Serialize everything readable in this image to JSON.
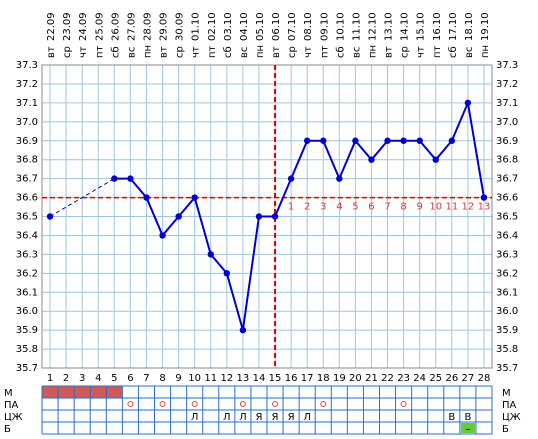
{
  "chart_data": {
    "type": "line",
    "x": [
      1,
      2,
      3,
      4,
      5,
      6,
      7,
      8,
      9,
      10,
      11,
      12,
      13,
      14,
      15,
      16,
      17,
      18,
      19,
      20,
      21,
      22,
      23,
      24,
      25,
      26,
      27,
      28
    ],
    "weekdays": [
      "вт",
      "ср",
      "чт",
      "пт",
      "сб",
      "вс",
      "пн",
      "вт",
      "ср",
      "чт",
      "пт",
      "сб",
      "вс",
      "пн",
      "вт",
      "ср",
      "чт",
      "пт",
      "сб",
      "вс",
      "пн",
      "вт",
      "ср",
      "чт",
      "пт",
      "сб",
      "вс",
      "пн"
    ],
    "dates": [
      "22.09",
      "23.09",
      "24.09",
      "25.09",
      "26.09",
      "27.09",
      "28.09",
      "29.09",
      "30.09",
      "01.10",
      "02.10",
      "03.10",
      "04.10",
      "05.10",
      "06.10",
      "07.10",
      "08.10",
      "09.10",
      "10.10",
      "11.10",
      "12.10",
      "13.10",
      "14.10",
      "15.10",
      "16.10",
      "17.10",
      "18.10",
      "19.10"
    ],
    "series": [
      {
        "color": "#0000cc",
        "values": [
          36.5,
          null,
          null,
          null,
          36.7,
          36.7,
          36.6,
          36.4,
          36.5,
          36.6,
          36.3,
          36.2,
          35.9,
          36.5,
          36.5,
          36.7,
          36.9,
          36.9,
          36.7,
          36.9,
          36.8,
          36.9,
          36.9,
          36.9,
          36.8,
          36.9,
          37.1,
          36.6
        ]
      }
    ],
    "ylim": [
      35.7,
      37.3
    ],
    "yticks": [
      35.7,
      35.8,
      35.9,
      {
        "value": 36,
        "label": "36.0"
      },
      36.1,
      36.2,
      36.3,
      36.4,
      36.5,
      36.6,
      36.7,
      36.8,
      36.9,
      {
        "value": 37,
        "label": "37.0"
      },
      37.1,
      37.2,
      37.3
    ],
    "grid": true,
    "coverline": 36.6,
    "ovulation_day": 15,
    "phase_days": [
      null,
      null,
      null,
      null,
      null,
      null,
      null,
      null,
      null,
      null,
      null,
      null,
      null,
      null,
      null,
      1,
      2,
      3,
      4,
      5,
      6,
      7,
      8,
      9,
      10,
      11,
      12,
      13
    ],
    "table": {
      "row_labels": [
        "М",
        "ПА",
        "ЦЖ",
        "Б"
      ],
      "menstruation_days": [
        1,
        2,
        3,
        4,
        5
      ],
      "intercourse_days": [
        6,
        8,
        10,
        13,
        15,
        18,
        23
      ],
      "mucus": [
        null,
        null,
        null,
        null,
        null,
        null,
        null,
        null,
        null,
        "Л",
        null,
        "Л",
        "Л",
        "Я",
        "Я",
        "Я",
        "Л",
        null,
        null,
        null,
        null,
        null,
        null,
        null,
        null,
        "В",
        "В",
        null
      ],
      "b": [
        null,
        null,
        null,
        null,
        null,
        null,
        null,
        null,
        null,
        null,
        null,
        null,
        null,
        null,
        null,
        null,
        null,
        null,
        null,
        null,
        null,
        null,
        null,
        null,
        null,
        null,
        "–",
        null
      ]
    }
  }
}
